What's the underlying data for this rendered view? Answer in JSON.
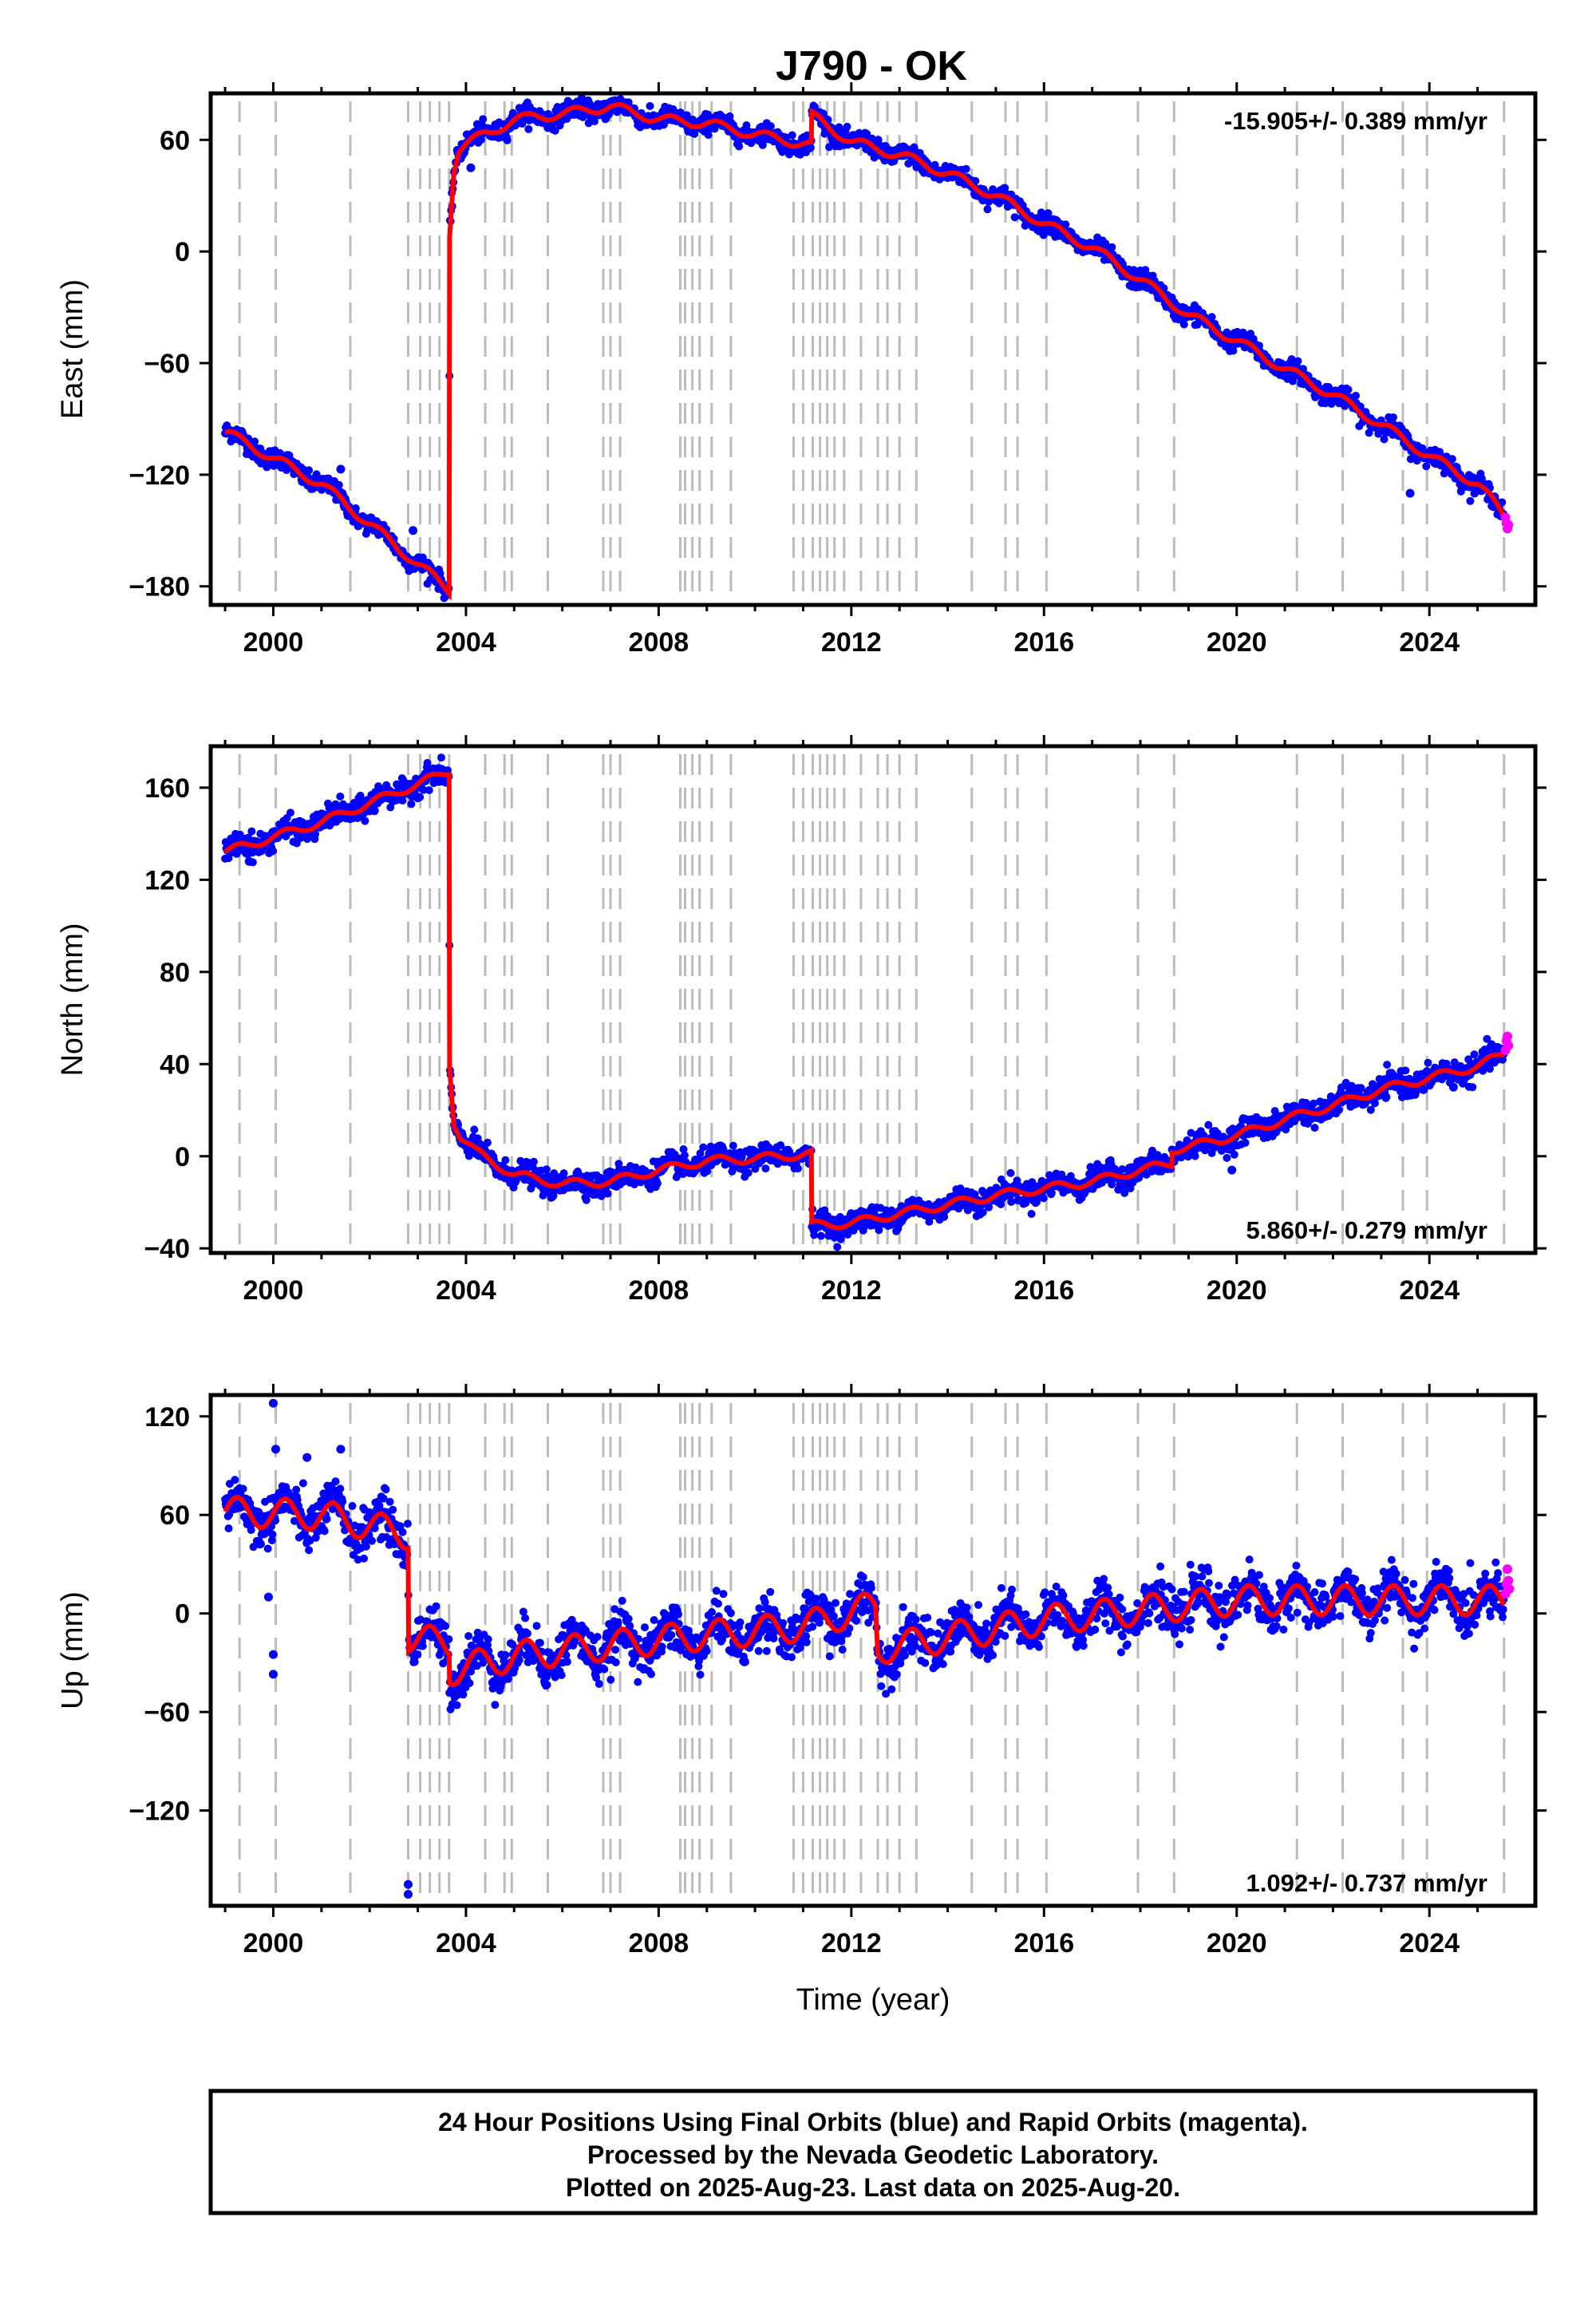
{
  "chart_data": {
    "type": "scatter",
    "title": "J790 - OK",
    "xlabel": "Time (year)",
    "x_ticks": [
      2000,
      2004,
      2008,
      2012,
      2016,
      2020,
      2024
    ],
    "xlim": [
      1998.7,
      2026.2
    ],
    "colors": {
      "final": "#0000ff",
      "rapid": "#ff00ff",
      "model": "#ff0000",
      "event_line": "#bbbbbb"
    },
    "event_lines": [
      1999.3,
      2000.05,
      2001.6,
      2002.8,
      2003.05,
      2003.25,
      2003.45,
      2003.65,
      2004.4,
      2004.8,
      2004.95,
      2005.7,
      2006.85,
      2007.0,
      2007.2,
      2008.45,
      2008.55,
      2008.7,
      2008.85,
      2009.1,
      2009.5,
      2010.8,
      2011.0,
      2011.2,
      2011.35,
      2011.5,
      2011.65,
      2011.85,
      2012.2,
      2012.55,
      2012.75,
      2013.0,
      2013.35,
      2014.5,
      2015.2,
      2015.45,
      2016.05,
      2017.95,
      2018.7,
      2021.25,
      2022.2,
      2023.45,
      2023.95,
      2025.55
    ],
    "panels": [
      {
        "id": "east",
        "ylabel": "East (mm)",
        "ylim": [
          -190,
          85
        ],
        "y_ticks": [
          -180,
          -120,
          -60,
          0,
          60
        ],
        "y_tick_labels": [
          "−180",
          "−120",
          "−60",
          "0",
          "60"
        ],
        "rate_text": "-15.905+/- 0.389 mm/yr",
        "rate_position": "top-right",
        "model": {
          "x": [
            1999.0,
            2001.0,
            2003.65,
            2003.66,
            2003.75,
            2003.85,
            2004.0,
            2004.5,
            2005.0,
            2006.0,
            2007.0,
            2008.0,
            2009.0,
            2010.0,
            2011.17,
            2011.18,
            2012.0,
            2013.0,
            2014.0,
            2015.0,
            2016.0,
            2017.0,
            2018.0,
            2019.0,
            2020.0,
            2021.0,
            2022.0,
            2023.0,
            2024.0,
            2025.0,
            2025.6
          ],
          "y": [
            -97,
            -125,
            -182,
            10,
            45,
            55,
            58,
            64,
            71,
            74,
            78,
            71,
            69,
            63,
            57,
            73,
            59,
            52,
            42,
            30,
            15,
            2,
            -15,
            -34,
            -48,
            -63,
            -77,
            -93,
            -110,
            -125,
            -143
          ],
          "season_amp": 2.5
        },
        "final_noise": 2.5,
        "outliers": [
          {
            "x": 2001.4,
            "y": -117
          },
          {
            "x": 2002.9,
            "y": -150
          },
          {
            "x": 2004.1,
            "y": 45
          },
          {
            "x": 2023.6,
            "y": -130
          }
        ],
        "rapid": {
          "x": [
            2025.58,
            2025.6,
            2025.62,
            2025.64
          ],
          "y": [
            -143,
            -146,
            -149,
            -147
          ]
        }
      },
      {
        "id": "north",
        "ylabel": "North (mm)",
        "ylim": [
          -42,
          178
        ],
        "y_ticks": [
          -40,
          0,
          40,
          80,
          120,
          160
        ],
        "y_tick_labels": [
          "−40",
          "0",
          "40",
          "80",
          "120",
          "160"
        ],
        "rate_text": "5.860+/- 0.279 mm/yr",
        "rate_position": "bottom-right",
        "model": {
          "x": [
            1999.0,
            2001.0,
            2003.65,
            2003.66,
            2003.75,
            2003.9,
            2004.2,
            2005.0,
            2006.0,
            2007.0,
            2008.0,
            2009.0,
            2010.0,
            2011.17,
            2011.18,
            2012.0,
            2013.0,
            2014.0,
            2015.0,
            2016.0,
            2017.0,
            2018.0,
            2018.65,
            2018.66,
            2019.0,
            2020.0,
            2021.0,
            2022.0,
            2023.0,
            2024.0,
            2025.0,
            2025.6
          ],
          "y": [
            132,
            145,
            167,
            40,
            15,
            8,
            2,
            -8,
            -12,
            -11,
            -6,
            -2,
            -1,
            1,
            -30,
            -29,
            -25,
            -21,
            -17,
            -14,
            -11,
            -6,
            -3,
            3,
            4,
            9,
            16,
            22,
            29,
            34,
            39,
            45
          ],
          "season_amp": 1.8
        },
        "final_noise": 2.5,
        "outliers": [
          {
            "x": 1999.5,
            "y": 128
          },
          {
            "x": 2002.1,
            "y": 150
          },
          {
            "x": 2019.9,
            "y": -6
          },
          {
            "x": 2024.5,
            "y": 30
          }
        ],
        "rapid": {
          "x": [
            2025.58,
            2025.6,
            2025.62,
            2025.64
          ],
          "y": [
            46,
            50,
            52,
            48
          ]
        }
      },
      {
        "id": "up",
        "ylabel": "Up (mm)",
        "ylim": [
          -178,
          133
        ],
        "y_ticks": [
          -120,
          -60,
          0,
          60,
          120
        ],
        "y_tick_labels": [
          "−120",
          "−60",
          "0",
          "60",
          "120"
        ],
        "rate_text": "1.092+/- 0.737 mm/yr",
        "rate_position": "bottom-right",
        "model": {
          "x": [
            1999.0,
            2001.0,
            2002.8,
            2002.81,
            2003.65,
            2003.66,
            2005.0,
            2008.0,
            2011.0,
            2012.5,
            2012.55,
            2016.0,
            2020.0,
            2025.6
          ],
          "y": [
            62,
            60,
            48,
            -15,
            -18,
            -35,
            -26,
            -16,
            -8,
            5,
            -22,
            -4,
            8,
            8
          ],
          "season_amp": 9
        },
        "final_noise": 7,
        "outliers": [
          {
            "x": 2000.0,
            "y": 128
          },
          {
            "x": 2000.05,
            "y": 100
          },
          {
            "x": 1999.9,
            "y": 10
          },
          {
            "x": 2000.0,
            "y": -25
          },
          {
            "x": 2000.0,
            "y": -37
          },
          {
            "x": 2002.8,
            "y": -165
          },
          {
            "x": 2002.8,
            "y": -171
          },
          {
            "x": 2001.4,
            "y": 100
          },
          {
            "x": 2000.7,
            "y": 95
          }
        ],
        "rapid": {
          "x": [
            2025.58,
            2025.6,
            2025.62,
            2025.64,
            2025.66
          ],
          "y": [
            12,
            18,
            27,
            20,
            15
          ]
        }
      }
    ]
  },
  "footer": {
    "line1": "24 Hour Positions Using Final Orbits (blue) and Rapid Orbits (magenta).",
    "line2": "Processed by the Nevada Geodetic Laboratory.",
    "line3": "Plotted on 2025-Aug-23. Last data on 2025-Aug-20."
  }
}
